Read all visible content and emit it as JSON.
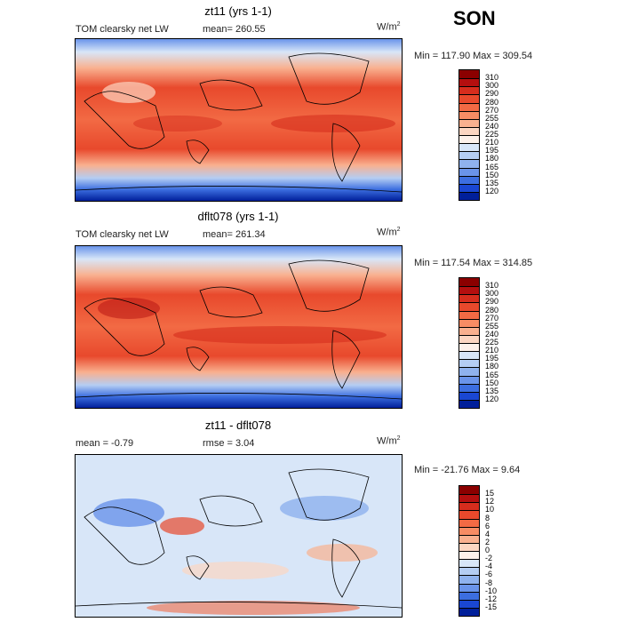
{
  "season": "SON",
  "panels": [
    {
      "title": "zt11 (yrs 1-1)",
      "variable": "TOM clearsky net LW",
      "stat1": "mean= 260.55",
      "stat2": "",
      "units": "W/m",
      "units_sup": "2",
      "range": "Min = 117.90 Max = 309.54",
      "levels": [
        "310",
        "300",
        "290",
        "280",
        "270",
        "255",
        "240",
        "225",
        "210",
        "195",
        "180",
        "165",
        "150",
        "135",
        "120"
      ],
      "colors": [
        "#8b0000",
        "#b40f0f",
        "#d62d1d",
        "#e8492c",
        "#f26a44",
        "#f78c64",
        "#f9b08f",
        "#fcd6c2",
        "#fdf1ea",
        "#d8e6f8",
        "#b4cdf3",
        "#8fb2ee",
        "#6a94ea",
        "#3c6ee0",
        "#1a47d2",
        "#001f9a"
      ]
    },
    {
      "title": "dflt078 (yrs 1-1)",
      "variable": "TOM clearsky net LW",
      "stat1": "mean= 261.34",
      "stat2": "",
      "units": "W/m",
      "units_sup": "2",
      "range": "Min = 117.54 Max = 314.85",
      "levels": [
        "310",
        "300",
        "290",
        "280",
        "270",
        "255",
        "240",
        "225",
        "210",
        "195",
        "180",
        "165",
        "150",
        "135",
        "120"
      ],
      "colors": [
        "#8b0000",
        "#b40f0f",
        "#d62d1d",
        "#e8492c",
        "#f26a44",
        "#f78c64",
        "#f9b08f",
        "#fcd6c2",
        "#fdf1ea",
        "#d8e6f8",
        "#b4cdf3",
        "#8fb2ee",
        "#6a94ea",
        "#3c6ee0",
        "#1a47d2",
        "#001f9a"
      ]
    },
    {
      "title": "zt11 - dflt078",
      "variable": "",
      "stat1": "mean =  -0.79",
      "stat2": "rmse =   3.04",
      "units": "W/m",
      "units_sup": "2",
      "range": "Min = -21.76 Max =   9.64",
      "levels": [
        "15",
        "12",
        "10",
        "8",
        "6",
        "4",
        "2",
        "0",
        "-2",
        "-4",
        "-6",
        "-8",
        "-10",
        "-12",
        "-15"
      ],
      "colors": [
        "#8b0000",
        "#b40f0f",
        "#d62d1d",
        "#e8492c",
        "#f26a44",
        "#f78c64",
        "#f9b08f",
        "#fcd6c2",
        "#fdf1ea",
        "#d8e6f8",
        "#b4cdf3",
        "#8fb2ee",
        "#6a94ea",
        "#3c6ee0",
        "#1a47d2",
        "#001f9a"
      ]
    }
  ]
}
